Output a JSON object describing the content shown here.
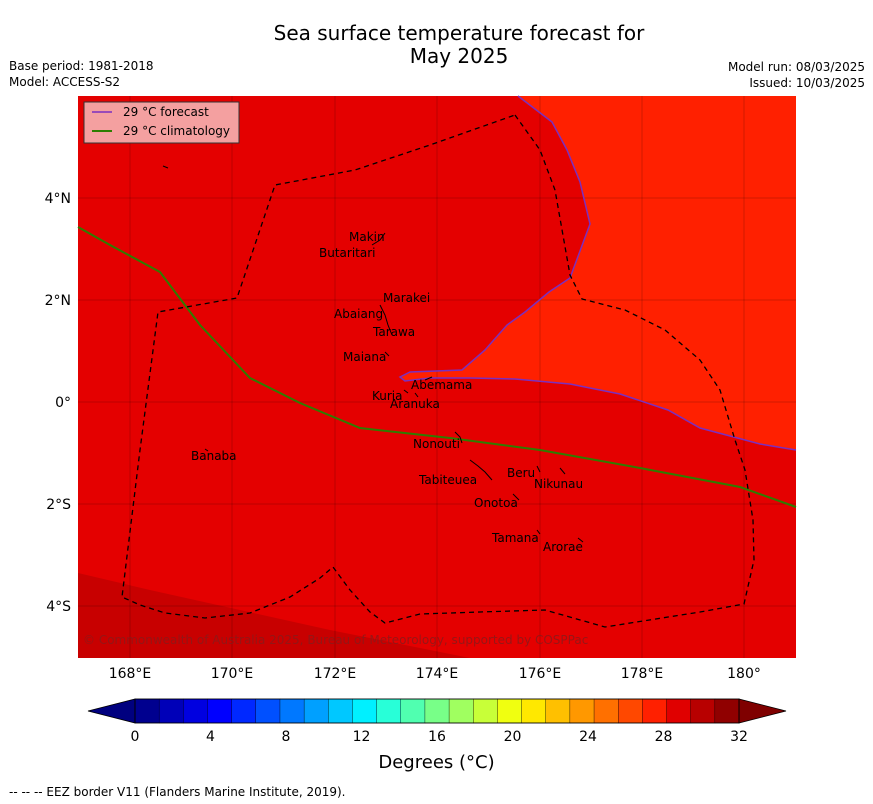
{
  "title_line1": "Sea surface temperature forecast for",
  "title_line2": "May 2025",
  "meta_left": {
    "base_period": "Base period: 1981-2018",
    "model": "Model: ACCESS-S2"
  },
  "meta_right": {
    "model_run": "Model run: 08/03/2025",
    "issued": "Issued: 10/03/2025"
  },
  "legend": {
    "forecast_label": "29 °C  forecast",
    "forecast_color": "#7b2fbf",
    "climatology_label": "29 °C  climatology",
    "climatology_color": "#2e7d00"
  },
  "copyright": "© Commonwealth of Australia 2025, Bureau of Meteorology, supported by COSPPac",
  "x_ticks": [
    "168°E",
    "170°E",
    "172°E",
    "174°E",
    "176°E",
    "178°E",
    "180°"
  ],
  "y_ticks": [
    "4°N",
    "2°N",
    "0°",
    "2°S",
    "4°S"
  ],
  "islands": [
    "Makin",
    "Butaritari",
    "Marakei",
    "Abaiang",
    "Tarawa",
    "Maiana",
    "Abemama",
    "Kuria",
    "Aranuka",
    "Nonouti",
    "Banaba",
    "Beru",
    "Nikunau",
    "Tabiteuea",
    "Onotoa",
    "Tamana",
    "Arorae"
  ],
  "colorbar": {
    "tick_labels": [
      "0",
      "4",
      "8",
      "12",
      "16",
      "20",
      "24",
      "28",
      "32"
    ],
    "label": "Degrees (°C)",
    "colors": [
      "#00008f",
      "#0000b8",
      "#0000e0",
      "#0000ff",
      "#0028ff",
      "#0050ff",
      "#0078ff",
      "#00a0ff",
      "#00c8ff",
      "#00f0ff",
      "#28ffd8",
      "#50ffb0",
      "#78ff88",
      "#a0ff60",
      "#c8ff38",
      "#f0ff10",
      "#ffe800",
      "#ffc000",
      "#ff9800",
      "#ff7000",
      "#ff4800",
      "#ff2000",
      "#e00000",
      "#b80000",
      "#900000"
    ],
    "under_color": "#00007f",
    "over_color": "#7f0000"
  },
  "map_colors": {
    "warm_29_30": "#ff2000",
    "main_28_29": "#e40000",
    "cool_27_28": "#c80000"
  },
  "footnote": "--  --  -- EEZ border V11 (Flanders Marine Institute, 2019)."
}
